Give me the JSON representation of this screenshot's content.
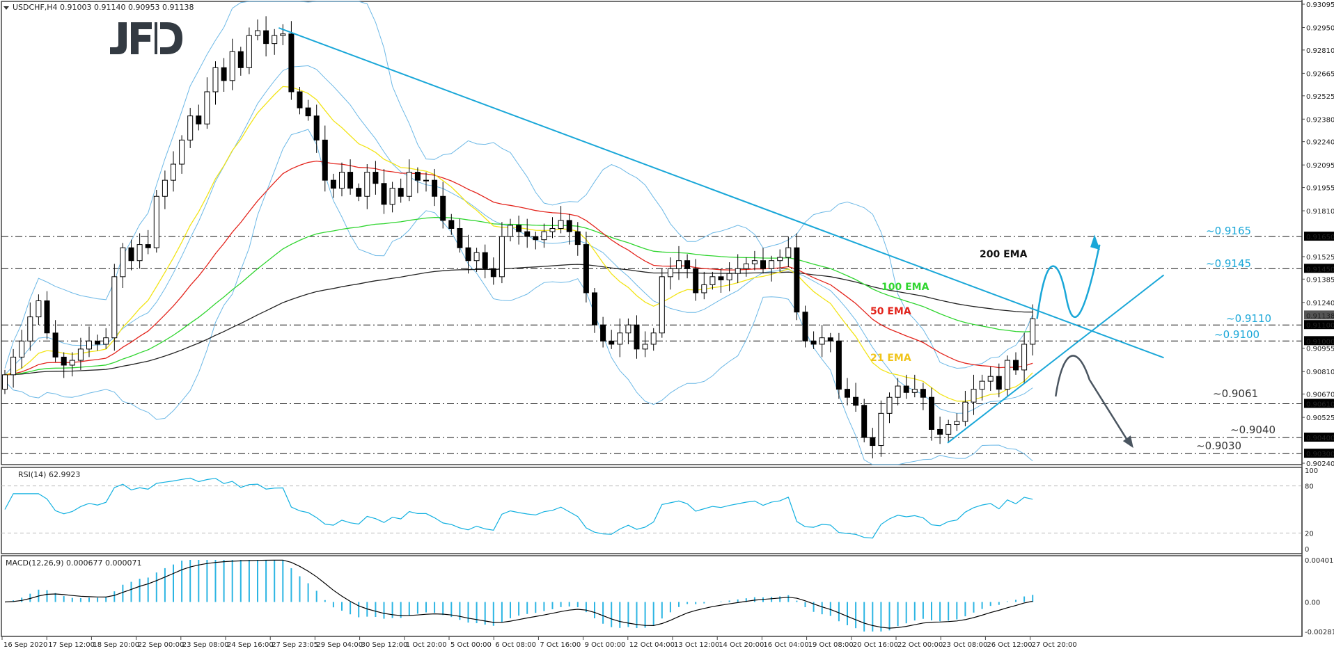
{
  "header": {
    "symbol": "USDCHF,H4",
    "ohlc": "0.91003 0.91140 0.90953 0.91138",
    "logo": "JFD"
  },
  "colors": {
    "bull_candle": "#ffffff",
    "bear_candle": "#000000",
    "bollinger": "#6cb8e6",
    "trendline": "#1aa7d8",
    "ema21": "#f2e416",
    "ema50": "#e3241c",
    "ema100": "#2fd52f",
    "ema200": "#222222",
    "rsi": "#11b0e0",
    "macd_hist": "#2cb5e3",
    "macd_signal": "#000000",
    "level_label_bg": "#000000",
    "current_price_bg": "#555555",
    "bullish_scenario": "#1aa7d8",
    "bearish_scenario": "#4a5560"
  },
  "chart_data": [
    {
      "type": "candlestick",
      "title": "USDCHF,H4 0.91003 0.91140 0.90953 0.91138",
      "y_ticks": [
        "0.93095",
        "0.92950",
        "0.92810",
        "0.92665",
        "0.92525",
        "0.92380",
        "0.92240",
        "0.92095",
        "0.91955",
        "0.91810",
        "0.91525",
        "0.91385",
        "0.91240",
        "0.90955",
        "0.90810",
        "0.90670",
        "0.90525",
        "0.90240"
      ],
      "ylim": [
        0.9024,
        0.93095
      ],
      "x_ticks": [
        "16 Sep 2020",
        "17 Sep 12:00",
        "18 Sep 20:00",
        "22 Sep 00:00",
        "23 Sep 08:00",
        "24 Sep 16:00",
        "27 Sep 23:05",
        "29 Sep 04:00",
        "30 Sep 12:00",
        "1 Oct 20:00",
        "5 Oct 00:00",
        "6 Oct 08:00",
        "7 Oct 16:00",
        "9 Oct 00:00",
        "12 Oct 04:00",
        "13 Oct 12:00",
        "14 Oct 20:00",
        "16 Oct 04:00",
        "19 Oct 08:00",
        "20 Oct 16:00",
        "22 Oct 00:00",
        "23 Oct 08:00",
        "26 Oct 12:00",
        "27 Oct 20:00"
      ],
      "closes": [
        0.9079,
        0.909,
        0.91,
        0.9115,
        0.9125,
        0.9105,
        0.909,
        0.9085,
        0.9088,
        0.9095,
        0.91,
        0.9098,
        0.9102,
        0.914,
        0.9158,
        0.915,
        0.916,
        0.9158,
        0.919,
        0.92,
        0.921,
        0.9225,
        0.924,
        0.9235,
        0.9255,
        0.927,
        0.9262,
        0.928,
        0.927,
        0.929,
        0.9293,
        0.9285,
        0.929,
        0.9291,
        0.9255,
        0.9245,
        0.924,
        0.9225,
        0.92,
        0.9195,
        0.9205,
        0.9195,
        0.919,
        0.9205,
        0.9198,
        0.9185,
        0.9195,
        0.919,
        0.9205,
        0.92,
        0.92,
        0.919,
        0.9175,
        0.917,
        0.9158,
        0.915,
        0.9155,
        0.9145,
        0.914,
        0.9165,
        0.9172,
        0.9168,
        0.9165,
        0.9163,
        0.9168,
        0.917,
        0.9175,
        0.9168,
        0.916,
        0.913,
        0.911,
        0.91,
        0.9098,
        0.9105,
        0.911,
        0.9095,
        0.9098,
        0.9105,
        0.914,
        0.9145,
        0.915,
        0.9145,
        0.913,
        0.9135,
        0.914,
        0.9138,
        0.9142,
        0.9145,
        0.9148,
        0.915,
        0.9145,
        0.915,
        0.9152,
        0.9158,
        0.9118,
        0.91,
        0.9098,
        0.9102,
        0.91,
        0.907,
        0.9065,
        0.906,
        0.904,
        0.9035,
        0.9055,
        0.9065,
        0.9072,
        0.9068,
        0.907,
        0.9065,
        0.9045,
        0.9042,
        0.9048,
        0.905,
        0.9062,
        0.907,
        0.9075,
        0.9078,
        0.907,
        0.9088,
        0.9082,
        0.9098,
        0.91138
      ],
      "last_price": "0.91138",
      "levels": [
        {
          "value": "0.91650",
          "label": "~0.9165",
          "color": "#1aa7d8"
        },
        {
          "value": "0.91450",
          "label": "~0.9145",
          "color": "#1aa7d8"
        },
        {
          "value": "0.91100",
          "label": "~0.9110",
          "color": "#1aa7d8"
        },
        {
          "value": "0.91000",
          "label": "~0.9100",
          "color": "#1aa7d8"
        },
        {
          "value": "0.90610",
          "label": "~0.9061",
          "color": "#333333"
        },
        {
          "value": "0.90400",
          "label": "~0.9040",
          "color": "#333333"
        },
        {
          "value": "0.90300",
          "label": "~0.9030",
          "color": "#333333"
        }
      ],
      "indicators": {
        "ema21": "21 EMA",
        "ema50": "50 EMA",
        "ema100": "100 EMA",
        "ema200": "200 EMA",
        "bollinger": true
      },
      "grid": false
    },
    {
      "type": "line",
      "title": "RSI(14) 62.9923",
      "ylim": [
        0,
        100
      ],
      "y_ticks": [
        "100",
        "80",
        "20",
        "0"
      ],
      "last_value": 62.9923
    },
    {
      "type": "bar",
      "title": "MACD(12,26,9) 0.000677 0.000071",
      "ylim": [
        -0.002812,
        0.00401
      ],
      "y_ticks": [
        "0.00401",
        "0.00",
        "-0.002812"
      ],
      "last_macd": 0.000677,
      "last_signal": 7.1e-05
    }
  ]
}
